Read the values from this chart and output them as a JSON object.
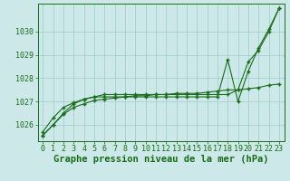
{
  "xlabel": "Graphe pression niveau de la mer (hPa)",
  "x": [
    0,
    1,
    2,
    3,
    4,
    5,
    6,
    7,
    8,
    9,
    10,
    11,
    12,
    13,
    14,
    15,
    16,
    17,
    18,
    19,
    20,
    21,
    22,
    23
  ],
  "line1": [
    1025.55,
    1026.0,
    1026.45,
    1026.75,
    1026.9,
    1027.05,
    1027.1,
    1027.15,
    1027.2,
    1027.25,
    1027.25,
    1027.3,
    1027.3,
    1027.35,
    1027.35,
    1027.35,
    1027.4,
    1027.45,
    1027.5,
    1027.5,
    1027.55,
    1027.6,
    1027.7,
    1027.75
  ],
  "line2": [
    1025.7,
    1026.3,
    1026.75,
    1026.95,
    1027.1,
    1027.2,
    1027.2,
    1027.2,
    1027.2,
    1027.2,
    1027.2,
    1027.2,
    1027.2,
    1027.2,
    1027.2,
    1027.2,
    1027.2,
    1027.2,
    1028.8,
    1027.0,
    1028.3,
    1029.3,
    1030.1,
    1031.0
  ],
  "line3": [
    1025.55,
    1026.0,
    1026.5,
    1026.9,
    1027.1,
    1027.2,
    1027.3,
    1027.3,
    1027.3,
    1027.3,
    1027.3,
    1027.3,
    1027.3,
    1027.3,
    1027.3,
    1027.3,
    1027.3,
    1027.3,
    1027.3,
    1027.5,
    1028.7,
    1029.2,
    1030.0,
    1031.0
  ],
  "line_color": "#1a6b1a",
  "bg_color": "#cce8e8",
  "grid_color": "#99cccc",
  "ylim_min": 1025.3,
  "ylim_max": 1031.2,
  "yticks": [
    1026,
    1027,
    1028,
    1029,
    1030
  ],
  "xticks": [
    0,
    1,
    2,
    3,
    4,
    5,
    6,
    7,
    8,
    9,
    10,
    11,
    12,
    13,
    14,
    15,
    16,
    17,
    18,
    19,
    20,
    21,
    22,
    23
  ],
  "marker": "+",
  "markersize": 3.5,
  "markeredgewidth": 1.0,
  "linewidth": 0.8,
  "label_fontsize": 7.5,
  "tick_fontsize": 6.0
}
